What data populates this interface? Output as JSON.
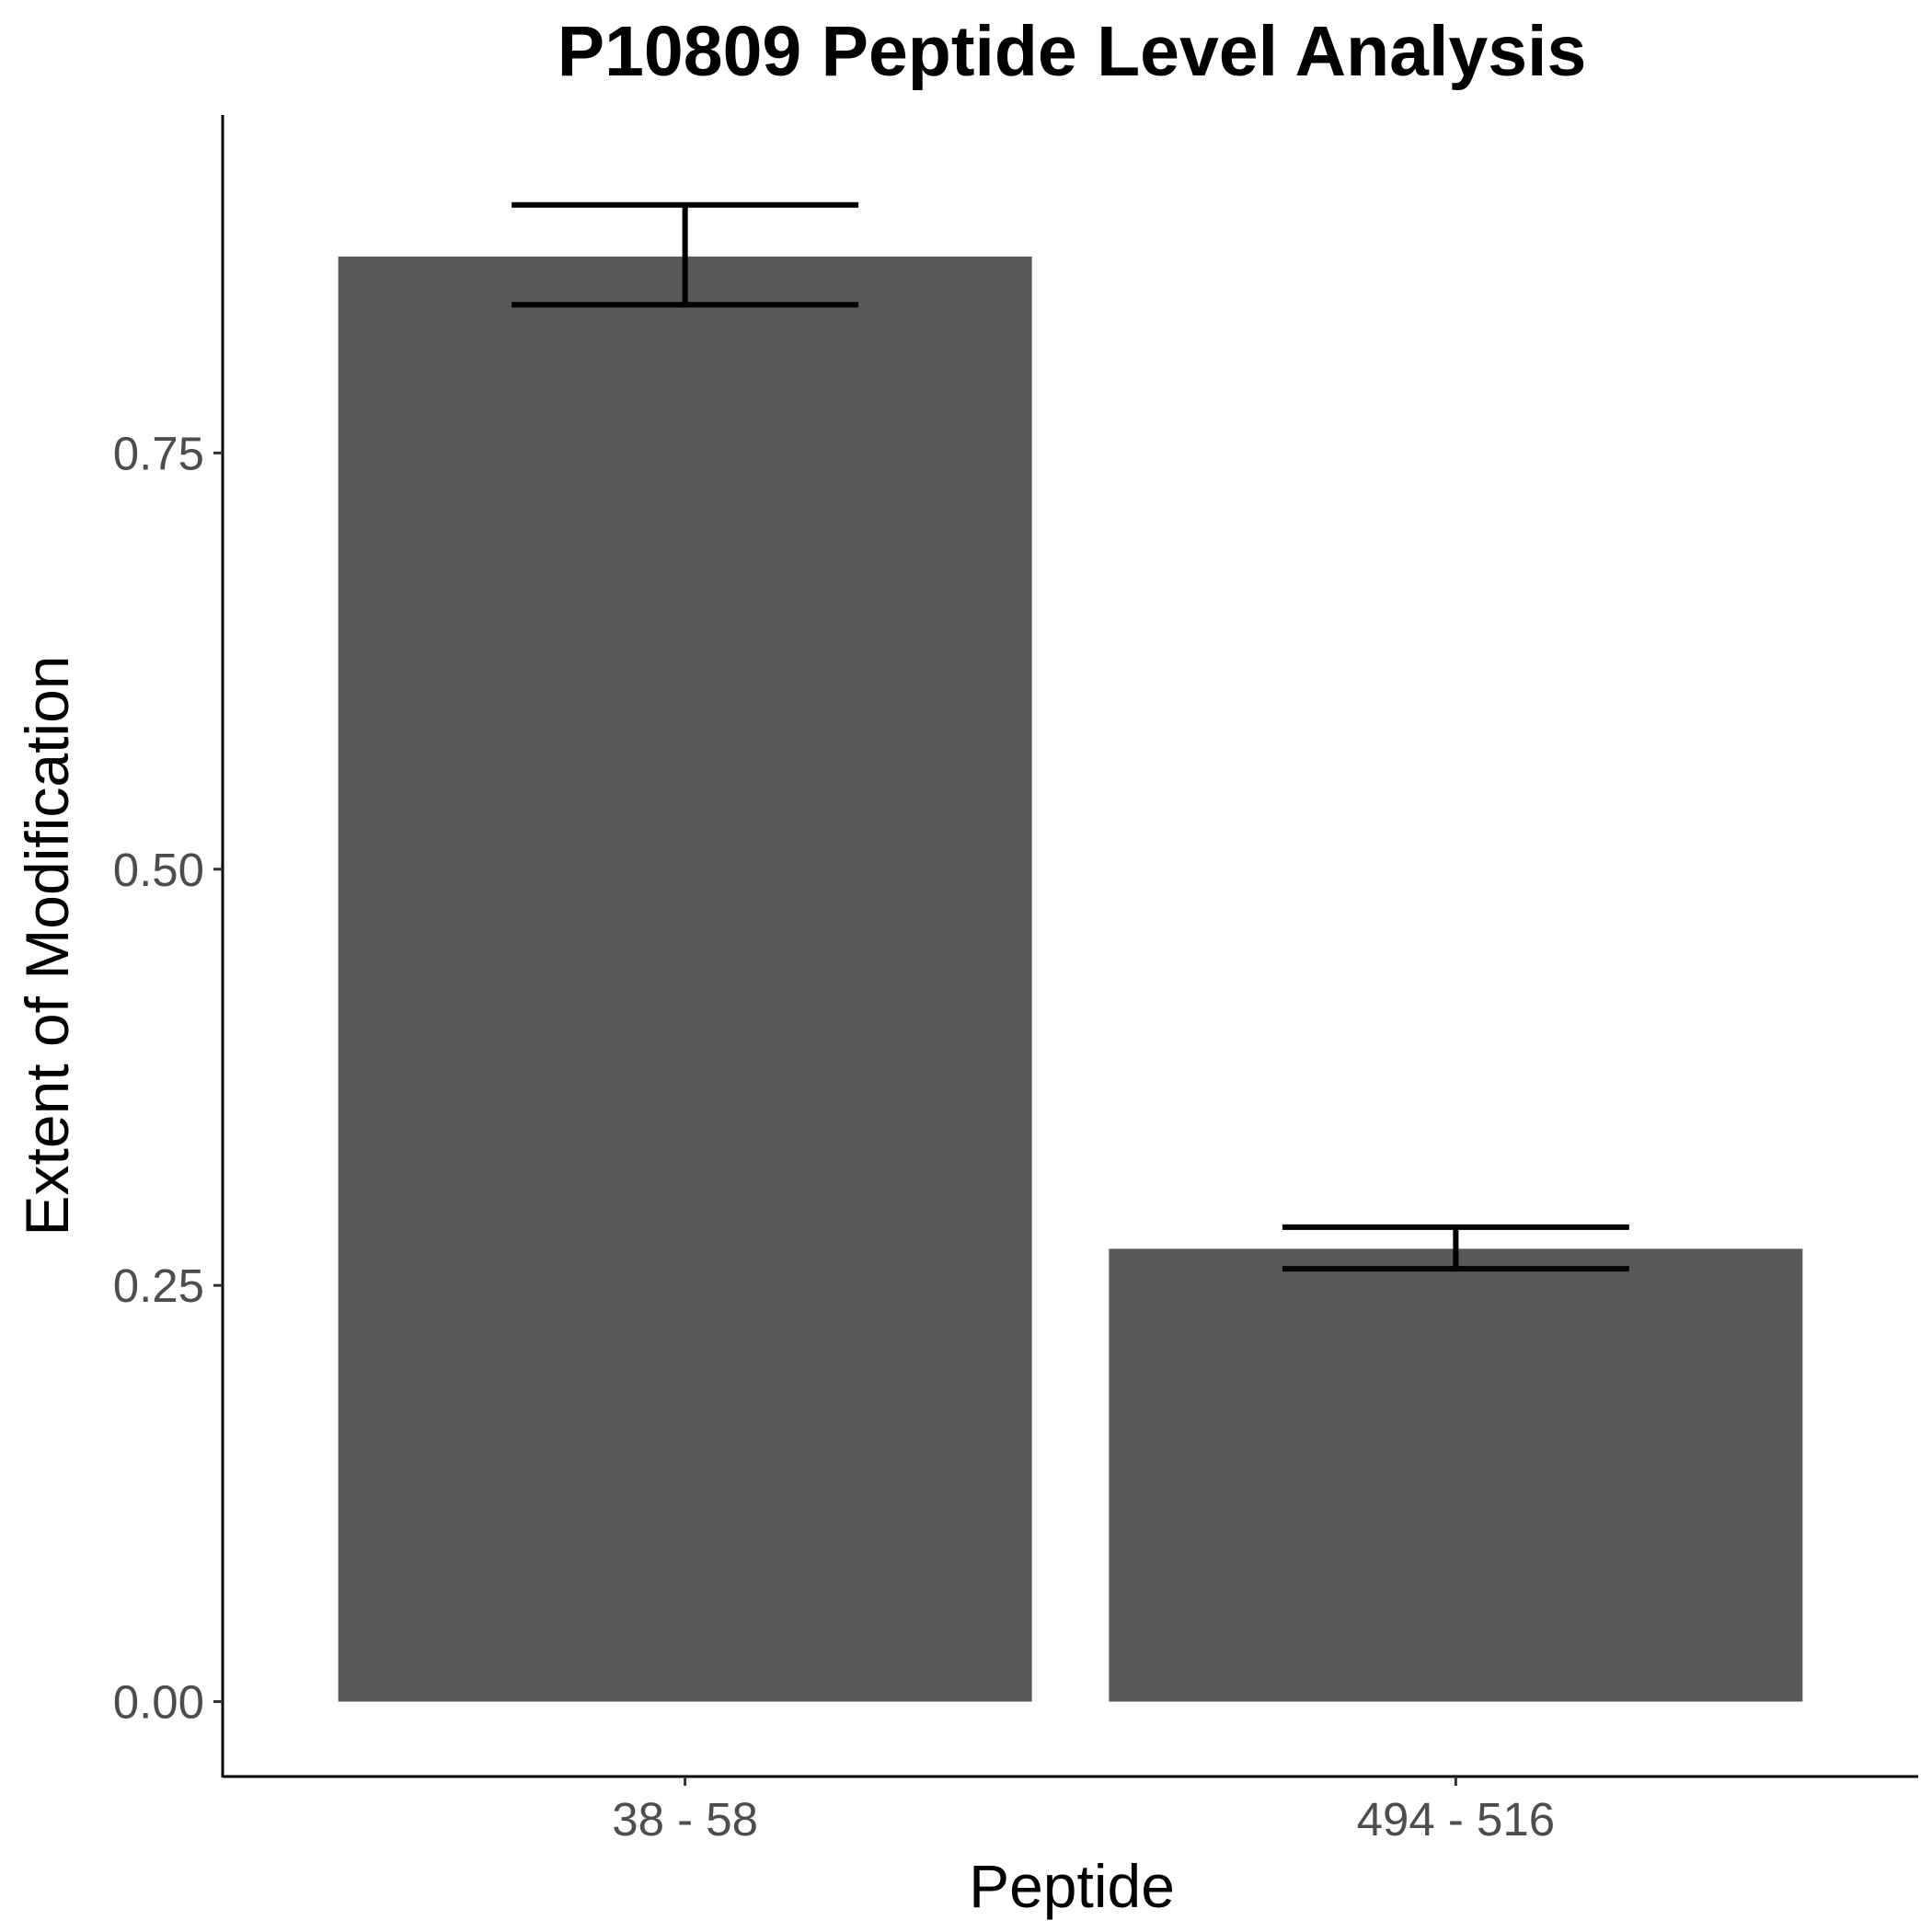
{
  "chart_data": {
    "type": "bar",
    "title": "P10809  Peptide Level Analysis",
    "xlabel": "Peptide",
    "ylabel": "Extent of Modification",
    "categories": [
      "38 - 58",
      "494 - 516"
    ],
    "values": [
      0.868,
      0.272
    ],
    "error_bars": [
      {
        "low": 0.839,
        "high": 0.899
      },
      {
        "low": 0.26,
        "high": 0.285
      }
    ],
    "yticks": [
      0.0,
      0.25,
      0.5,
      0.75
    ],
    "ytick_labels": [
      "0.00",
      "0.25",
      "0.50",
      "0.75"
    ],
    "ylim": [
      -0.045,
      0.953
    ],
    "grid": false,
    "bar_color": "#595959",
    "errorbar_color": "#000000"
  }
}
